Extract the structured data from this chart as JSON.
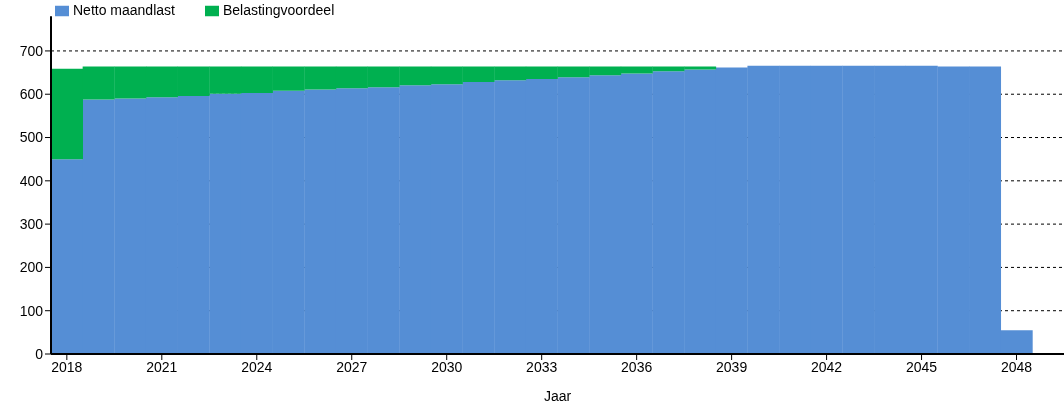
{
  "chart_data": {
    "type": "bar",
    "stacked": true,
    "xlabel": "Jaar",
    "x": [
      2018,
      2019,
      2020,
      2021,
      2022,
      2023,
      2024,
      2025,
      2026,
      2027,
      2028,
      2029,
      2030,
      2031,
      2032,
      2033,
      2034,
      2035,
      2036,
      2037,
      2038,
      2039,
      2040,
      2041,
      2042,
      2043,
      2044,
      2045,
      2046,
      2047,
      2048
    ],
    "series": [
      {
        "name": "Netto maandlast",
        "color": "#558ed5",
        "values": [
          450,
          588,
          590,
          593,
          596,
          601,
          603,
          608,
          611,
          614,
          616,
          621,
          623,
          628,
          632,
          635,
          639,
          644,
          648,
          653,
          657,
          662,
          666,
          666,
          666,
          666,
          666,
          666,
          664,
          664,
          55
        ]
      },
      {
        "name": "Belastingvoordeel",
        "color": "#00b050",
        "values": [
          209,
          76,
          74,
          71,
          68,
          63,
          61,
          56,
          53,
          50,
          48,
          43,
          41,
          36,
          32,
          29,
          25,
          20,
          16,
          11,
          7,
          null,
          0,
          0,
          0,
          0,
          0,
          0,
          0,
          0,
          0
        ]
      }
    ],
    "xlim": [
      2017.5,
      2049.5
    ],
    "xticks": [
      2018,
      2021,
      2024,
      2027,
      2030,
      2033,
      2036,
      2039,
      2042,
      2045,
      2048
    ],
    "ylim": [
      0,
      780
    ],
    "yticks": [
      0,
      100,
      200,
      300,
      400,
      500,
      600,
      700
    ],
    "grid": "y",
    "legend": "top left"
  }
}
